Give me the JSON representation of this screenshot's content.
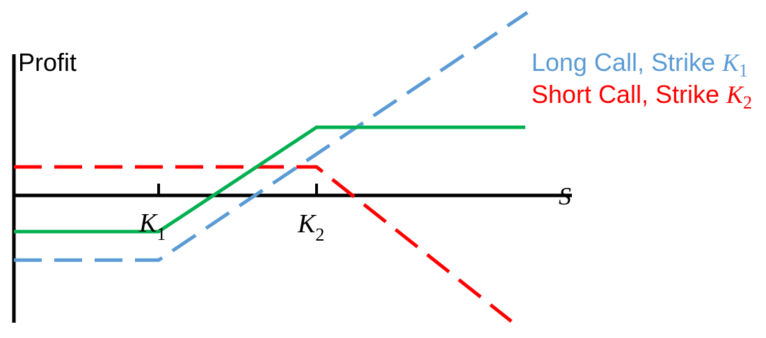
{
  "axes": {
    "y_label": "Profit",
    "x_label": "S"
  },
  "ticks": [
    {
      "sym": "K",
      "sub": "1"
    },
    {
      "sym": "K",
      "sub": "2"
    }
  ],
  "legend": [
    {
      "text": "Long Call, Strike ",
      "sym": "K",
      "sub": "1",
      "color": "#5b9bd5",
      "style": "dashed"
    },
    {
      "text": "Short Call, Strike ",
      "sym": "K",
      "sub": "2",
      "color": "#ff0000",
      "style": "dashed"
    }
  ],
  "colors": {
    "axis": "#000000",
    "long_call": "#5b9bd5",
    "short_call": "#ff0000",
    "bull_spread": "#00b050"
  }
}
